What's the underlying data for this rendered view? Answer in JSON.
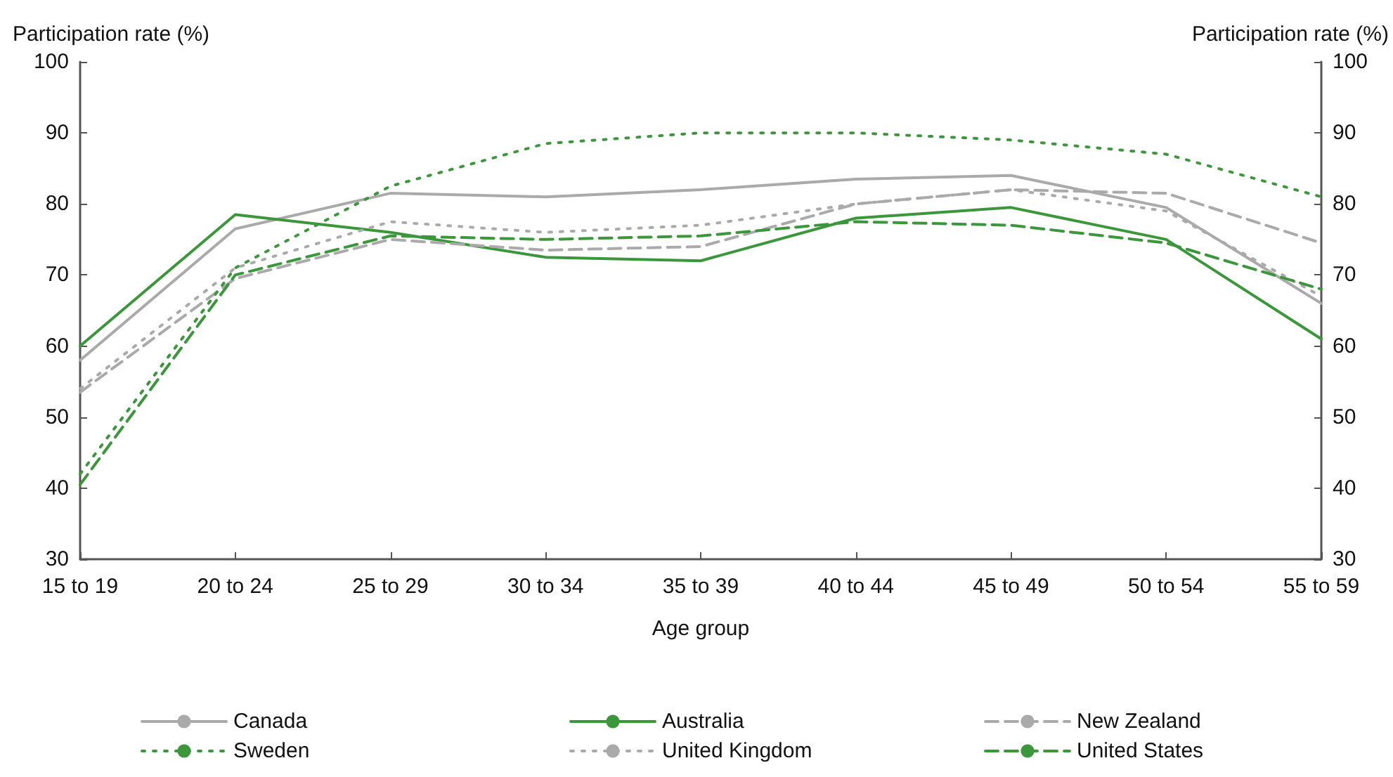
{
  "chart_data": {
    "type": "line",
    "xlabel": "Age group",
    "ylabel": "Participation rate (%)",
    "y2label": "Participation rate (%)",
    "categories": [
      "15 to 19",
      "20 to 24",
      "25 to 29",
      "30 to 34",
      "35 to 39",
      "40 to 44",
      "45 to 49",
      "50 to 54",
      "55 to 59"
    ],
    "series": [
      {
        "name": "Canada",
        "color": "#aaaaaa",
        "line_style": "solid",
        "values": [
          58,
          76.5,
          81.5,
          81,
          82,
          83.5,
          84,
          79.5,
          66
        ]
      },
      {
        "name": "Australia",
        "color": "#3c963c",
        "line_style": "solid",
        "values": [
          60,
          78.5,
          76,
          72.5,
          72,
          78,
          79.5,
          75,
          61
        ]
      },
      {
        "name": "New Zealand",
        "color": "#aaaaaa",
        "line_style": "dashed",
        "values": [
          53.5,
          69.5,
          75,
          73.5,
          74,
          80,
          82,
          81.5,
          74.5
        ]
      },
      {
        "name": "Sweden",
        "color": "#3c963c",
        "line_style": "dotted",
        "values": [
          42,
          71,
          82.5,
          88.5,
          90,
          90,
          89,
          87,
          81
        ]
      },
      {
        "name": "United Kingdom",
        "color": "#aaaaaa",
        "line_style": "dotted",
        "values": [
          54,
          71,
          77.5,
          76,
          77,
          80,
          82,
          79,
          67
        ]
      },
      {
        "name": "United States",
        "color": "#3c963c",
        "line_style": "dashed",
        "values": [
          40.5,
          70,
          75.5,
          75,
          75.5,
          77.5,
          77,
          74.5,
          68
        ]
      }
    ],
    "ylim": [
      30,
      100
    ],
    "yticks": [
      30,
      40,
      50,
      60,
      70,
      80,
      90,
      100
    ],
    "y2lim": [
      30,
      100
    ],
    "y2ticks": [
      30,
      40,
      50,
      60,
      70,
      80,
      90,
      100
    ],
    "grid": false,
    "legend": "bottom",
    "marker": "none"
  }
}
